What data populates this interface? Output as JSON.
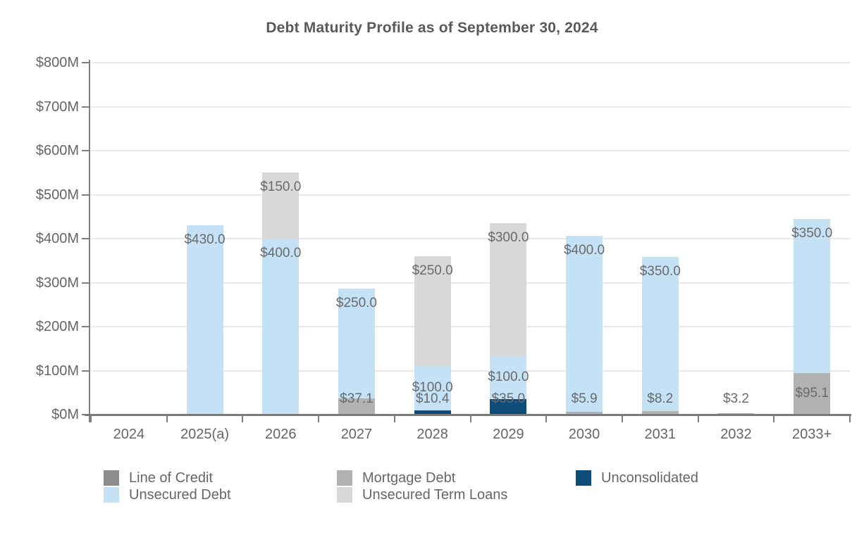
{
  "chart_data": {
    "type": "bar",
    "stacked": true,
    "title": "Debt Maturity Profile as of September 30, 2024",
    "categories": [
      "2024",
      "2025(a)",
      "2026",
      "2027",
      "2028",
      "2029",
      "2030",
      "2031",
      "2032",
      "2033+"
    ],
    "y_axis": {
      "tick_labels": [
        "$0M",
        "$100M",
        "$200M",
        "$300M",
        "$400M",
        "$500M",
        "$600M",
        "$700M",
        "$800M"
      ],
      "min": 0,
      "max": 800,
      "step": 100,
      "unit": "$M"
    },
    "grid": true,
    "series": [
      {
        "name": "Unconsolidated",
        "color": "#0e4d7a",
        "values": [
          0,
          0,
          0,
          0,
          10.4,
          35.0,
          0,
          0,
          0,
          0
        ],
        "labels": [
          null,
          null,
          null,
          null,
          "$10.4",
          "$35.0",
          null,
          null,
          null,
          null
        ]
      },
      {
        "name": "Mortgage Debt",
        "color": "#b2b2b2",
        "values": [
          0,
          0,
          0,
          37.1,
          0,
          0,
          5.9,
          8.2,
          3.2,
          95.1
        ],
        "labels": [
          null,
          null,
          null,
          "$37.1",
          null,
          null,
          "$5.9",
          "$8.2",
          "$3.2",
          "$95.1"
        ]
      },
      {
        "name": "Line of Credit",
        "color": "#8c8c8c",
        "values": [
          0,
          0,
          0,
          0,
          0,
          0,
          0,
          0,
          0,
          0
        ],
        "labels": [
          null,
          null,
          null,
          null,
          null,
          null,
          null,
          null,
          null,
          null
        ]
      },
      {
        "name": "Unsecured Debt",
        "color": "#c4e1f6",
        "values": [
          0,
          430.0,
          400.0,
          250.0,
          100.0,
          100.0,
          400.0,
          350.0,
          0,
          350.0
        ],
        "labels": [
          null,
          "$430.0",
          "$400.0",
          "$250.0",
          "$100.0",
          "$100.0",
          "$400.0",
          "$350.0",
          null,
          "$350.0"
        ]
      },
      {
        "name": "Unsecured Term Loans",
        "color": "#d8d8d8",
        "values": [
          0,
          0,
          150.0,
          0,
          250.0,
          300.0,
          0,
          0,
          0,
          0
        ],
        "labels": [
          null,
          null,
          "$150.0",
          null,
          "$250.0",
          "$300.0",
          null,
          null,
          null,
          null
        ]
      }
    ],
    "legend": {
      "position": "bottom",
      "items": [
        {
          "label": "Line of Credit",
          "color": "#8c8c8c"
        },
        {
          "label": "Mortgage Debt",
          "color": "#b2b2b2"
        },
        {
          "label": "Unconsolidated",
          "color": "#0e4d7a"
        },
        {
          "label": "Unsecured Debt",
          "color": "#c4e1f6"
        },
        {
          "label": "Unsecured Term Loans",
          "color": "#d8d8d8"
        }
      ]
    }
  }
}
